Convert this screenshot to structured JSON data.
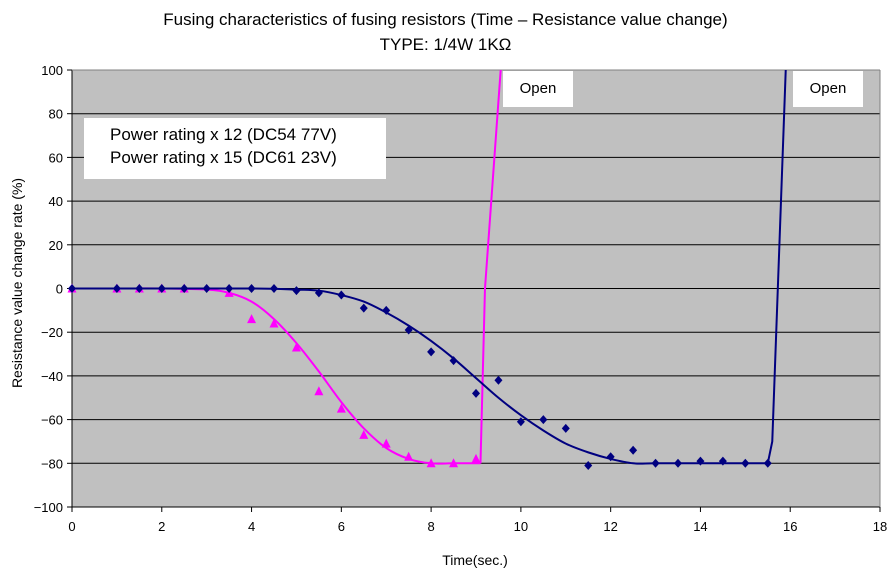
{
  "chart_data": {
    "type": "scatter",
    "title": "Fusing characteristics of fusing resistors (Time – Resistance value change)",
    "subtitle": "TYPE: 1/4W 1KΩ",
    "xlabel": "Time(sec.)",
    "ylabel": "Resistance value  change rate (%)",
    "xlim": [
      0,
      18
    ],
    "ylim": [
      -100,
      100
    ],
    "x_ticks": [
      "0",
      "2",
      "4",
      "6",
      "8",
      "10",
      "12",
      "14",
      "16",
      "18"
    ],
    "y_ticks": [
      "100",
      "80",
      "60",
      "40",
      "20",
      "0",
      "−20",
      "−40",
      "−60",
      "−80",
      "−100"
    ],
    "grid": true,
    "background": "#c0c0c0",
    "legend_lines": [
      "Power rating x 12 (DC54 77V)",
      "Power rating x 15 (DC61 23V)"
    ],
    "annotations": [
      "Open",
      "Open"
    ],
    "series": [
      {
        "marker": "triangle",
        "color": "#ff00ff",
        "points": [
          [
            0,
            0
          ],
          [
            1,
            0
          ],
          [
            1.5,
            0
          ],
          [
            2,
            0
          ],
          [
            2.5,
            0
          ],
          [
            3.5,
            -2
          ],
          [
            4,
            -14
          ],
          [
            4.5,
            -16
          ],
          [
            5,
            -27
          ],
          [
            5.5,
            -47
          ],
          [
            6,
            -55
          ],
          [
            6.5,
            -67
          ],
          [
            7,
            -71
          ],
          [
            7.5,
            -77
          ],
          [
            8,
            -80
          ],
          [
            8.5,
            -80
          ],
          [
            9,
            -78
          ]
        ],
        "fit_curve": [
          [
            0,
            0
          ],
          [
            1,
            0
          ],
          [
            2,
            0
          ],
          [
            3,
            -0.5
          ],
          [
            3.5,
            -2
          ],
          [
            4,
            -6
          ],
          [
            4.5,
            -14
          ],
          [
            5,
            -25
          ],
          [
            5.5,
            -38
          ],
          [
            6,
            -52
          ],
          [
            6.5,
            -64
          ],
          [
            7,
            -73
          ],
          [
            7.5,
            -78
          ],
          [
            8,
            -80
          ],
          [
            8.5,
            -80
          ],
          [
            9.1,
            -80
          ],
          [
            9.2,
            0
          ],
          [
            9.55,
            100
          ]
        ]
      },
      {
        "marker": "diamond",
        "color": "#000080",
        "points": [
          [
            0,
            0
          ],
          [
            1,
            0
          ],
          [
            1.5,
            0
          ],
          [
            2,
            0
          ],
          [
            2.5,
            0
          ],
          [
            3,
            0
          ],
          [
            3.5,
            0
          ],
          [
            4,
            0
          ],
          [
            4.5,
            0
          ],
          [
            5,
            -1
          ],
          [
            5.5,
            -2
          ],
          [
            6,
            -3
          ],
          [
            6.5,
            -9
          ],
          [
            7,
            -10
          ],
          [
            7.5,
            -19
          ],
          [
            8,
            -29
          ],
          [
            8.5,
            -33
          ],
          [
            9,
            -48
          ],
          [
            9.5,
            -42
          ],
          [
            10,
            -61
          ],
          [
            10.5,
            -60
          ],
          [
            11,
            -64
          ],
          [
            11.5,
            -81
          ],
          [
            12,
            -77
          ],
          [
            12.5,
            -74
          ],
          [
            13,
            -80
          ],
          [
            13.5,
            -80
          ],
          [
            14,
            -79
          ],
          [
            14.5,
            -79
          ],
          [
            15,
            -80
          ],
          [
            15.5,
            -80
          ]
        ],
        "fit_curve": [
          [
            0,
            0
          ],
          [
            2,
            0
          ],
          [
            4,
            0
          ],
          [
            5,
            -0.5
          ],
          [
            5.5,
            -1
          ],
          [
            6,
            -3
          ],
          [
            6.5,
            -6
          ],
          [
            7,
            -11
          ],
          [
            7.5,
            -17
          ],
          [
            8,
            -24
          ],
          [
            8.5,
            -32
          ],
          [
            9,
            -41
          ],
          [
            9.5,
            -50
          ],
          [
            10,
            -58
          ],
          [
            10.5,
            -65
          ],
          [
            11,
            -71
          ],
          [
            11.5,
            -75
          ],
          [
            12,
            -78
          ],
          [
            12.5,
            -80
          ],
          [
            13,
            -80
          ],
          [
            14,
            -80
          ],
          [
            15.5,
            -80
          ],
          [
            15.6,
            -70
          ],
          [
            15.9,
            100
          ]
        ]
      }
    ]
  }
}
